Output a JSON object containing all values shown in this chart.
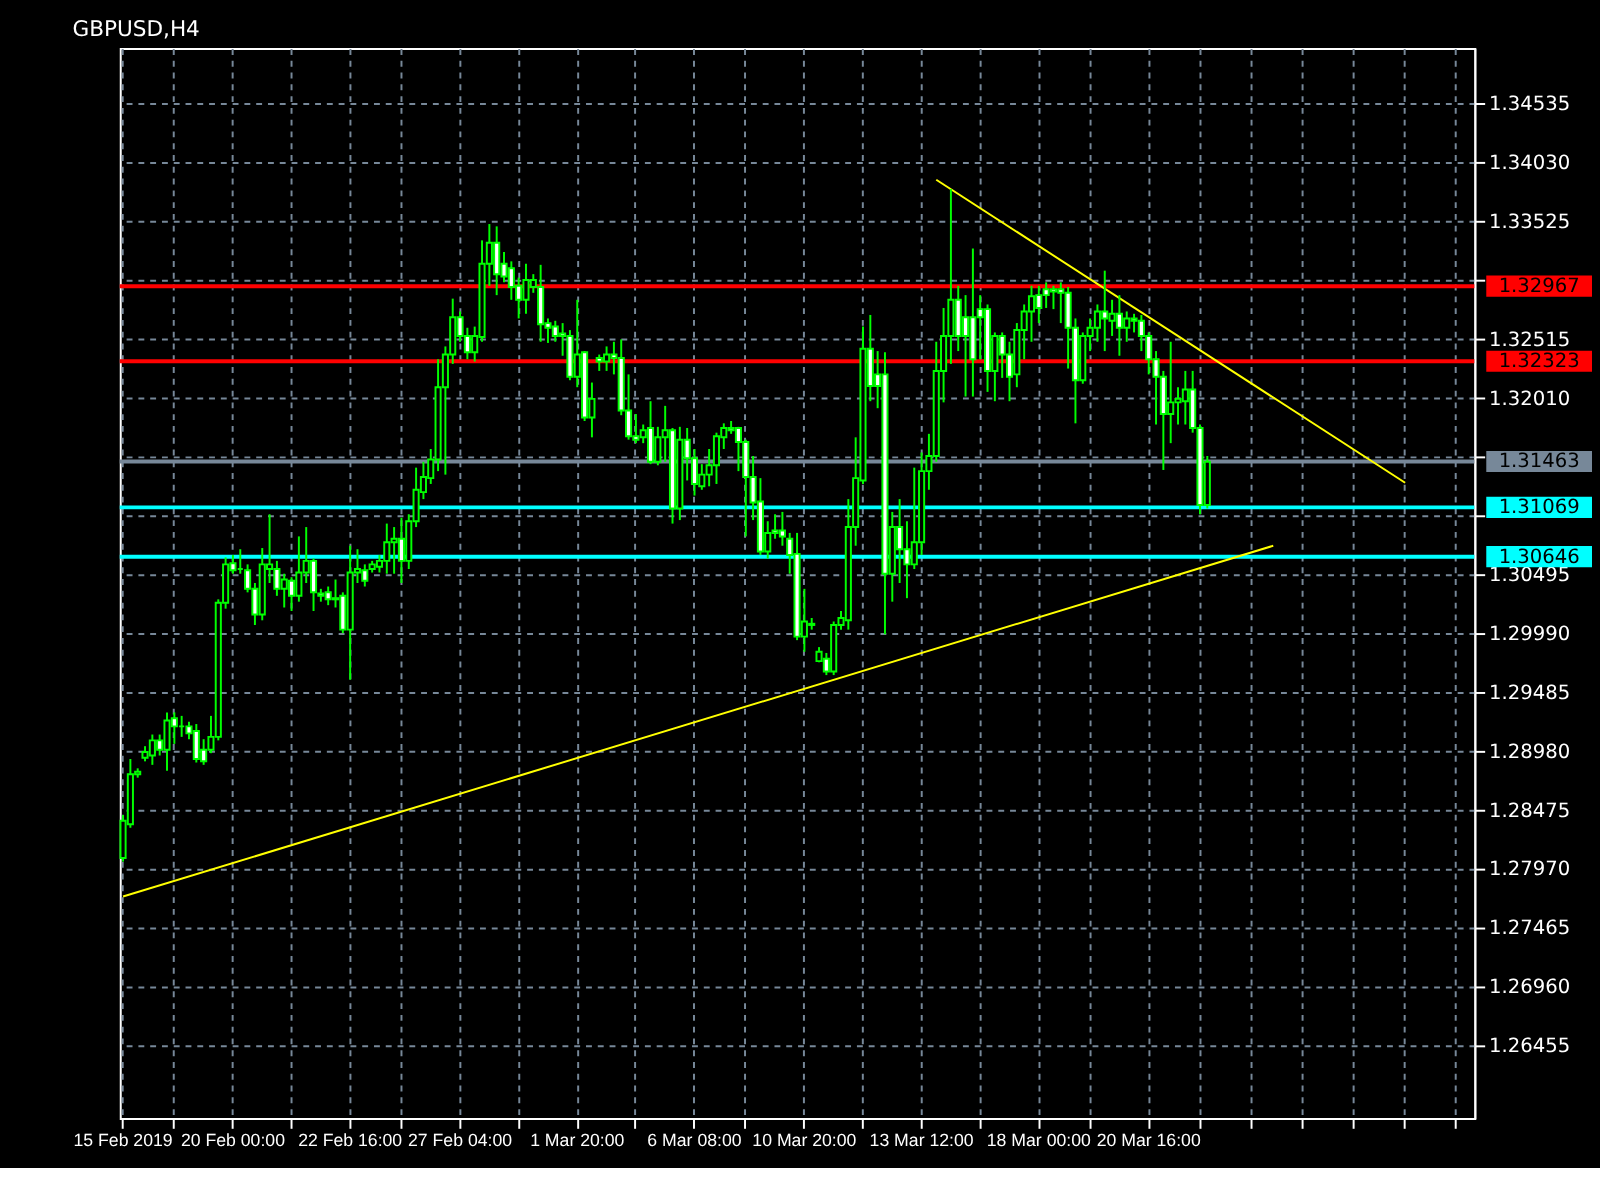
{
  "chart_data": {
    "type": "candlestick",
    "title": "GBPUSD,H4",
    "categories": [
      "15 Feb 2019",
      null,
      null,
      null,
      null,
      null,
      null,
      null,
      null,
      null,
      null,
      null,
      null,
      null,
      null,
      "20 Feb 00:00",
      null,
      null,
      null,
      null,
      null,
      null,
      null,
      null,
      null,
      null,
      null,
      null,
      null,
      null,
      null,
      "22 Feb 16:00",
      null,
      null,
      null,
      null,
      null,
      null,
      null,
      null,
      null,
      null,
      null,
      null,
      null,
      null,
      "27 Feb 04:00",
      null,
      null,
      null,
      null,
      null,
      null,
      null,
      null,
      null,
      null,
      null,
      null,
      null,
      null,
      null,
      "1 Mar 20:00",
      null,
      null,
      null,
      null,
      null,
      null,
      null,
      null,
      null,
      null,
      null,
      null,
      null,
      null,
      null,
      "6 Mar 08:00",
      null,
      null,
      null,
      null,
      null,
      null,
      null,
      null,
      null,
      null,
      null,
      null,
      null,
      null,
      "10 Mar 20:00",
      null,
      null,
      null,
      null,
      null,
      null,
      null,
      null,
      null,
      null,
      null,
      null,
      null,
      null,
      null,
      "13 Mar 12:00",
      null,
      null,
      null,
      null,
      null,
      null,
      null,
      null,
      null,
      null,
      null,
      null,
      null,
      null,
      null,
      "18 Mar 00:00",
      null,
      null,
      null,
      null,
      null,
      null,
      null,
      null,
      null,
      null,
      null,
      null,
      null,
      null,
      "20 Mar 16:00",
      null,
      null,
      null,
      null,
      null,
      null,
      null,
      null,
      null,
      null,
      null,
      null,
      null,
      null,
      null,
      null,
      null,
      null,
      null,
      null,
      null,
      null,
      null,
      null,
      null,
      null,
      null,
      null,
      null,
      null,
      null,
      null,
      null,
      null,
      null,
      null,
      null,
      null,
      null,
      null,
      null,
      null,
      null,
      null
    ],
    "ohlc": [
      [
        1.2806,
        1.2843,
        1.2803,
        1.2838
      ],
      [
        1.2835,
        1.2891,
        1.2832,
        1.2878
      ],
      [
        1.2878,
        1.2883,
        1.2875,
        1.288
      ],
      [
        1.2892,
        1.2902,
        1.2889,
        1.2897
      ],
      [
        1.2894,
        1.2912,
        1.2886,
        1.2907
      ],
      [
        1.2907,
        1.2912,
        1.2894,
        1.2899
      ],
      [
        1.2899,
        1.2931,
        1.2881,
        1.2924
      ],
      [
        1.2926,
        1.2931,
        1.2904,
        1.2919
      ],
      [
        1.2919,
        1.2928,
        1.291,
        1.2919
      ],
      [
        1.2919,
        1.2923,
        1.2908,
        1.2913
      ],
      [
        1.2915,
        1.2921,
        1.2888,
        1.2891
      ],
      [
        1.2899,
        1.2908,
        1.2886,
        1.2889
      ],
      [
        1.2899,
        1.2928,
        1.2896,
        1.291
      ],
      [
        1.291,
        1.3028,
        1.2907,
        1.3025
      ],
      [
        1.3025,
        1.3064,
        1.302,
        1.3058
      ],
      [
        1.3059,
        1.3066,
        1.305,
        1.3053
      ],
      [
        1.3054,
        1.3071,
        1.305,
        1.3054
      ],
      [
        1.3053,
        1.3058,
        1.3034,
        1.3037
      ],
      [
        1.3037,
        1.3042,
        1.3006,
        1.3015
      ],
      [
        1.3015,
        1.3072,
        1.301,
        1.3058
      ],
      [
        1.3054,
        1.3101,
        1.3042,
        1.3058
      ],
      [
        1.3054,
        1.3061,
        1.3031,
        1.3037
      ],
      [
        1.3037,
        1.305,
        1.3021,
        1.3045
      ],
      [
        1.3044,
        1.3047,
        1.3018,
        1.3031
      ],
      [
        1.3031,
        1.3082,
        1.3026,
        1.3051
      ],
      [
        1.3051,
        1.309,
        1.3042,
        1.3061
      ],
      [
        1.3061,
        1.3063,
        1.3018,
        1.3034
      ],
      [
        1.3033,
        1.3037,
        1.3026,
        1.3031
      ],
      [
        1.3034,
        1.3039,
        1.3023,
        1.3028
      ],
      [
        1.3029,
        1.3045,
        1.3021,
        1.3028
      ],
      [
        1.3031,
        1.3034,
        1.2999,
        1.3002
      ],
      [
        1.3002,
        1.3074,
        1.2959,
        1.3051
      ],
      [
        1.3051,
        1.3071,
        1.3042,
        1.3054
      ],
      [
        1.3053,
        1.3058,
        1.3039,
        1.3044
      ],
      [
        1.3054,
        1.3061,
        1.3051,
        1.3058
      ],
      [
        1.3056,
        1.3066,
        1.3051,
        1.3061
      ],
      [
        1.3061,
        1.3093,
        1.305,
        1.3077
      ],
      [
        1.3077,
        1.309,
        1.305,
        1.308
      ],
      [
        1.308,
        1.3098,
        1.3042,
        1.3061
      ],
      [
        1.3061,
        1.3101,
        1.3054,
        1.3095
      ],
      [
        1.3095,
        1.3141,
        1.309,
        1.3122
      ],
      [
        1.312,
        1.3146,
        1.3114,
        1.3133
      ],
      [
        1.3132,
        1.3157,
        1.3127,
        1.3148
      ],
      [
        1.3148,
        1.3234,
        1.3138,
        1.321
      ],
      [
        1.321,
        1.3245,
        1.3135,
        1.3238
      ],
      [
        1.3238,
        1.3286,
        1.323,
        1.327
      ],
      [
        1.327,
        1.3275,
        1.3249,
        1.3254
      ],
      [
        1.3254,
        1.3261,
        1.3234,
        1.324
      ],
      [
        1.324,
        1.3262,
        1.3232,
        1.3254
      ],
      [
        1.3253,
        1.3336,
        1.3249,
        1.3316
      ],
      [
        1.3316,
        1.335,
        1.3297,
        1.3334
      ],
      [
        1.3334,
        1.3348,
        1.3289,
        1.3307
      ],
      [
        1.3316,
        1.3326,
        1.33,
        1.3305
      ],
      [
        1.3312,
        1.3318,
        1.3285,
        1.3296
      ],
      [
        1.3297,
        1.3304,
        1.3269,
        1.3285
      ],
      [
        1.3285,
        1.3316,
        1.3273,
        1.3302
      ],
      [
        1.3296,
        1.3307,
        1.3291,
        1.3302
      ],
      [
        1.3296,
        1.3315,
        1.3249,
        1.3264
      ],
      [
        1.3265,
        1.3269,
        1.3248,
        1.3261
      ],
      [
        1.3262,
        1.3267,
        1.3249,
        1.3254
      ],
      [
        1.3256,
        1.3265,
        1.3237,
        1.3254
      ],
      [
        1.3254,
        1.3259,
        1.3216,
        1.3219
      ],
      [
        1.3219,
        1.3285,
        1.321,
        1.3238
      ],
      [
        1.324,
        1.3241,
        1.3181,
        1.3184
      ],
      [
        1.3184,
        1.3214,
        1.3167,
        1.32
      ],
      [
        1.3235,
        1.3238,
        1.3224,
        1.3232
      ],
      [
        1.3232,
        1.3245,
        1.3224,
        1.3238
      ],
      [
        1.3238,
        1.3249,
        1.3221,
        1.3235
      ],
      [
        1.3235,
        1.3251,
        1.3186,
        1.319
      ],
      [
        1.319,
        1.3221,
        1.3165,
        1.3168
      ],
      [
        1.3168,
        1.3187,
        1.3162,
        1.3165
      ],
      [
        1.3167,
        1.3178,
        1.3162,
        1.3173
      ],
      [
        1.3175,
        1.3198,
        1.3144,
        1.3146
      ],
      [
        1.3146,
        1.3176,
        1.3143,
        1.3167
      ],
      [
        1.3167,
        1.3194,
        1.3146,
        1.3173
      ],
      [
        1.3173,
        1.3175,
        1.3093,
        1.3106
      ],
      [
        1.3106,
        1.3176,
        1.3096,
        1.3165
      ],
      [
        1.3165,
        1.3175,
        1.313,
        1.3149
      ],
      [
        1.3149,
        1.3157,
        1.3117,
        1.3127
      ],
      [
        1.3125,
        1.3144,
        1.3122,
        1.3135
      ],
      [
        1.3135,
        1.3157,
        1.3125,
        1.3143
      ],
      [
        1.3143,
        1.3171,
        1.3127,
        1.3168
      ],
      [
        1.3167,
        1.3179,
        1.3157,
        1.3175
      ],
      [
        1.3175,
        1.3181,
        1.317,
        1.3173
      ],
      [
        1.3175,
        1.3176,
        1.3138,
        1.3163
      ],
      [
        1.3163,
        1.3165,
        1.3082,
        1.3133
      ],
      [
        1.3133,
        1.3151,
        1.3096,
        1.3111
      ],
      [
        1.3112,
        1.3132,
        1.3066,
        1.3069
      ],
      [
        1.3069,
        1.3095,
        1.3063,
        1.3085
      ],
      [
        1.3087,
        1.3101,
        1.308,
        1.3085
      ],
      [
        1.3087,
        1.3103,
        1.3074,
        1.3082
      ],
      [
        1.308,
        1.3085,
        1.305,
        1.3066
      ],
      [
        1.3067,
        1.3085,
        1.2993,
        1.2996
      ],
      [
        1.2996,
        1.3037,
        1.2983,
        1.3009
      ],
      [
        1.3006,
        1.3012,
        1.3002,
        1.3007
      ],
      [
        1.2975,
        1.2987,
        1.2974,
        1.2983
      ],
      [
        1.2977,
        1.2982,
        1.2963,
        1.2966
      ],
      [
        1.2966,
        1.3009,
        1.2963,
        1.3006
      ],
      [
        1.3006,
        1.3018,
        1.3002,
        1.3012
      ],
      [
        1.301,
        1.3114,
        1.3002,
        1.309
      ],
      [
        1.309,
        1.3167,
        1.3074,
        1.3132
      ],
      [
        1.313,
        1.3262,
        1.3127,
        1.3243
      ],
      [
        1.3243,
        1.3272,
        1.3198,
        1.3211
      ],
      [
        1.3221,
        1.3241,
        1.3192,
        1.3211
      ],
      [
        1.3221,
        1.324,
        1.2998,
        1.305
      ],
      [
        1.305,
        1.3103,
        1.3026,
        1.309
      ],
      [
        1.309,
        1.3114,
        1.3042,
        1.3071
      ],
      [
        1.3071,
        1.3095,
        1.3029,
        1.3058
      ],
      [
        1.3058,
        1.3141,
        1.3054,
        1.3077
      ],
      [
        1.3077,
        1.3154,
        1.3066,
        1.3138
      ],
      [
        1.3138,
        1.317,
        1.3122,
        1.3151
      ],
      [
        1.3151,
        1.3249,
        1.3146,
        1.3224
      ],
      [
        1.3224,
        1.3278,
        1.3197,
        1.3254
      ],
      [
        1.3254,
        1.338,
        1.323,
        1.3285
      ],
      [
        1.3285,
        1.3297,
        1.3241,
        1.3254
      ],
      [
        1.327,
        1.3289,
        1.3202,
        1.3254
      ],
      [
        1.327,
        1.3329,
        1.3202,
        1.3234
      ],
      [
        1.3277,
        1.3289,
        1.3234,
        1.327
      ],
      [
        1.3277,
        1.3281,
        1.3206,
        1.3224
      ],
      [
        1.3224,
        1.3257,
        1.3198,
        1.3254
      ],
      [
        1.3254,
        1.3257,
        1.3218,
        1.3238
      ],
      [
        1.3238,
        1.3249,
        1.3198,
        1.3219
      ],
      [
        1.3221,
        1.3265,
        1.321,
        1.3259
      ],
      [
        1.3259,
        1.3281,
        1.3234,
        1.3275
      ],
      [
        1.3275,
        1.3297,
        1.3249,
        1.3288
      ],
      [
        1.3289,
        1.3297,
        1.3265,
        1.3278
      ],
      [
        1.3294,
        1.33,
        1.3278,
        1.3289
      ],
      [
        1.3294,
        1.3297,
        1.3277,
        1.3292
      ],
      [
        1.3294,
        1.33,
        1.3265,
        1.3291
      ],
      [
        1.3291,
        1.3296,
        1.3226,
        1.3261
      ],
      [
        1.3261,
        1.3269,
        1.3179,
        1.3216
      ],
      [
        1.3216,
        1.3257,
        1.3213,
        1.3254
      ],
      [
        1.3254,
        1.3269,
        1.3241,
        1.3261
      ],
      [
        1.3261,
        1.3281,
        1.3249,
        1.3275
      ],
      [
        1.3275,
        1.331,
        1.3241,
        1.3269
      ],
      [
        1.3267,
        1.3285,
        1.3254,
        1.3273
      ],
      [
        1.3273,
        1.3289,
        1.3237,
        1.3261
      ],
      [
        1.3261,
        1.3275,
        1.3249,
        1.3269
      ],
      [
        1.3269,
        1.3273,
        1.3257,
        1.3267
      ],
      [
        1.3267,
        1.3272,
        1.3241,
        1.3254
      ],
      [
        1.3254,
        1.3257,
        1.3221,
        1.3234
      ],
      [
        1.3234,
        1.3241,
        1.3178,
        1.3219
      ],
      [
        1.3219,
        1.3224,
        1.3139,
        1.3187
      ],
      [
        1.3187,
        1.3249,
        1.3162,
        1.3197
      ],
      [
        1.3197,
        1.321,
        1.3178,
        1.32
      ],
      [
        1.3198,
        1.3224,
        1.3178,
        1.3208
      ],
      [
        1.3208,
        1.3224,
        1.3171,
        1.3175
      ],
      [
        1.3175,
        1.3178,
        1.3101,
        1.3109
      ],
      [
        1.3109,
        1.3151,
        1.3106,
        1.3146
      ],
      null,
      null,
      null,
      null,
      null,
      null,
      null,
      null,
      null,
      null,
      null,
      null,
      null,
      null,
      null,
      null,
      null,
      null,
      null,
      null,
      null,
      null,
      null,
      null,
      null,
      null,
      null,
      null,
      null,
      null,
      null,
      null,
      null,
      null,
      null,
      null
    ],
    "series": [
      {
        "type": "line",
        "color": "#ffff00",
        "values": [
          null,
          null,
          null,
          null,
          null,
          null,
          null,
          null,
          null,
          null,
          null,
          null,
          null,
          null,
          null,
          null,
          null,
          null,
          null,
          null,
          null,
          null,
          null,
          null,
          null,
          null,
          null,
          null,
          null,
          null,
          null,
          null,
          null,
          null,
          null,
          null,
          null,
          null,
          null,
          null,
          null,
          null,
          null,
          null,
          null,
          null,
          null,
          null,
          null,
          null,
          null,
          null,
          null,
          null,
          null,
          null,
          null,
          null,
          null,
          null,
          null,
          null,
          null,
          null,
          null,
          null,
          null,
          null,
          null,
          null,
          null,
          null,
          null,
          null,
          null,
          null,
          null,
          null,
          null,
          null,
          null,
          null,
          null,
          null,
          null,
          null,
          null,
          null,
          null,
          null,
          null,
          null,
          null,
          null,
          null,
          null,
          null,
          null,
          null,
          null,
          null,
          null,
          null,
          null,
          null,
          null,
          null,
          null,
          null,
          null,
          null,
          1.3388,
          null,
          null,
          null,
          null,
          null,
          null,
          null,
          null,
          null,
          null,
          null,
          null,
          null,
          null,
          null,
          null,
          null,
          null,
          null,
          null,
          null,
          null,
          null,
          null,
          null,
          null,
          null,
          null,
          null,
          null,
          null,
          null,
          null,
          null,
          null,
          null,
          null,
          null,
          null,
          null,
          null,
          null,
          null,
          null,
          null,
          null,
          null,
          null,
          null,
          null,
          null,
          null,
          null,
          null,
          null,
          null,
          null,
          null,
          null,
          null,
          null,
          null,
          null,
          1.3128,
          null,
          null,
          null,
          null,
          null,
          null,
          null,
          null,
          null
        ]
      },
      {
        "type": "line",
        "color": "#ffff00",
        "values": [
          1.2773,
          null,
          null,
          null,
          null,
          null,
          null,
          null,
          null,
          null,
          null,
          null,
          null,
          null,
          null,
          null,
          null,
          null,
          null,
          null,
          null,
          null,
          null,
          null,
          null,
          null,
          null,
          null,
          null,
          null,
          null,
          null,
          null,
          null,
          null,
          null,
          null,
          null,
          null,
          null,
          null,
          null,
          null,
          null,
          null,
          null,
          null,
          null,
          null,
          null,
          null,
          null,
          null,
          null,
          null,
          null,
          null,
          null,
          null,
          null,
          null,
          null,
          null,
          null,
          null,
          null,
          null,
          null,
          null,
          null,
          null,
          null,
          null,
          null,
          null,
          null,
          null,
          null,
          null,
          null,
          null,
          null,
          null,
          null,
          null,
          null,
          null,
          null,
          null,
          null,
          null,
          null,
          null,
          null,
          null,
          null,
          null,
          null,
          null,
          null,
          null,
          null,
          null,
          null,
          null,
          null,
          null,
          null,
          null,
          null,
          null,
          null,
          null,
          null,
          null,
          null,
          null,
          null,
          null,
          null,
          null,
          null,
          null,
          null,
          null,
          null,
          null,
          null,
          null,
          null,
          null,
          null,
          null,
          null,
          null,
          null,
          null,
          null,
          null,
          null,
          null,
          null,
          null,
          null,
          null,
          null,
          null,
          null,
          null,
          null,
          null,
          null,
          null,
          null,
          null,
          null,
          null,
          1.3074,
          null,
          null,
          null,
          null,
          null,
          null,
          null,
          null,
          null,
          null,
          null,
          null,
          null,
          null,
          null,
          null,
          null,
          null,
          null,
          null,
          null,
          null,
          null,
          null,
          null,
          null,
          null
        ]
      }
    ],
    "ref_lines": [
      {
        "axis": "y",
        "value": 1.32967,
        "label": "1.32967",
        "color": "#ff0000"
      },
      {
        "axis": "y",
        "value": 1.32323,
        "label": "1.32323",
        "color": "#ff0000"
      },
      {
        "axis": "y",
        "value": 1.31463,
        "label": "1.31463",
        "color": "#778899"
      },
      {
        "axis": "y",
        "value": 1.31069,
        "label": "1.31069",
        "color": "#00ffff"
      },
      {
        "axis": "y",
        "value": 1.30646,
        "label": "1.30646",
        "color": "#00ffff"
      }
    ],
    "ylim": [
      1.2583,
      1.3501
    ],
    "yticks": [
      1.34535,
      {
        "value": 1.3403,
        "label": "1.34030"
      },
      1.33525,
      {
        "value": 1.3302,
        "label": null
      },
      1.32515,
      {
        "value": 1.3201,
        "label": "1.32010"
      },
      {
        "value": 1.31505,
        "label": null
      },
      {
        "value": 1.31,
        "label": null
      },
      1.30495,
      {
        "value": 1.2999,
        "label": "1.29990"
      },
      1.29485,
      {
        "value": 1.2898,
        "label": "1.28980"
      },
      1.28475,
      {
        "value": 1.2797,
        "label": "1.27970"
      },
      1.27465,
      {
        "value": 1.2696,
        "label": "1.26960"
      },
      1.26455
    ],
    "grid": true
  }
}
